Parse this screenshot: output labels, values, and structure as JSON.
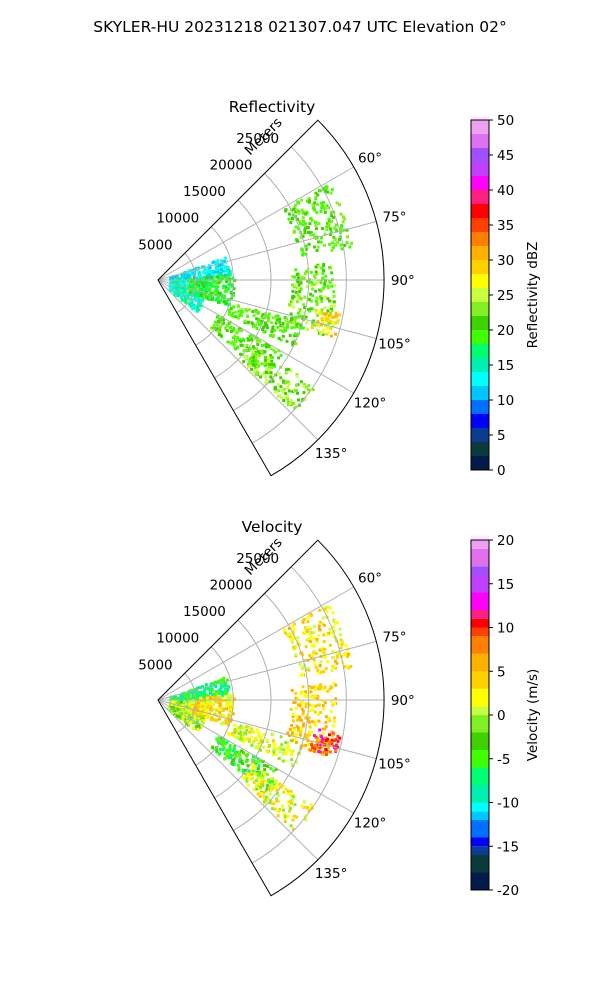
{
  "suptitle": "SKYLER-HU  20231218  021307.047 UTC Elevation 02°",
  "chart_data": [
    {
      "type": "heatmap",
      "title": "Reflectivity",
      "range_label": "Meters",
      "range_ticks": [
        5000,
        10000,
        15000,
        20000,
        25000
      ],
      "range_max": 30000,
      "azimuth_ticks": [
        "60°",
        "75°",
        "90°",
        "105°",
        "120°",
        "135°"
      ],
      "azimuth_range_deg": [
        45,
        150
      ],
      "colorbar": {
        "label": "Reflectivity dBZ",
        "min": 0,
        "max": 50,
        "ticks": [
          0,
          5,
          10,
          15,
          20,
          25,
          30,
          35,
          40,
          45,
          50
        ],
        "stops": [
          [
            0,
            "#001a4a"
          ],
          [
            2,
            "#0a3a3a"
          ],
          [
            4,
            "#0c3b92"
          ],
          [
            6,
            "#0000ff"
          ],
          [
            8,
            "#0070ff"
          ],
          [
            10,
            "#00c8ff"
          ],
          [
            12,
            "#00ffff"
          ],
          [
            14,
            "#00f0b0"
          ],
          [
            16,
            "#00ff70"
          ],
          [
            18,
            "#40ff00"
          ],
          [
            20,
            "#3fd000"
          ],
          [
            22,
            "#80f020"
          ],
          [
            24,
            "#c8ff40"
          ],
          [
            26,
            "#ffff00"
          ],
          [
            28,
            "#ffd000"
          ],
          [
            30,
            "#ffb000"
          ],
          [
            32,
            "#ff8000"
          ],
          [
            34,
            "#ff4000"
          ],
          [
            36,
            "#ff0000"
          ],
          [
            38,
            "#ff2080"
          ],
          [
            40,
            "#ff00ff"
          ],
          [
            42,
            "#c040ff"
          ],
          [
            44,
            "#a050ff"
          ],
          [
            46,
            "#e070f0"
          ],
          [
            48,
            "#f0a0f0"
          ],
          [
            50,
            "#ffe8ff"
          ]
        ]
      },
      "echoes": [
        {
          "r": [
            1500,
            9500
          ],
          "az": [
            70,
            88
          ],
          "value": 13
        },
        {
          "r": [
            1500,
            6500
          ],
          "az": [
            88,
            130
          ],
          "value": 15
        },
        {
          "r": [
            4000,
            10000
          ],
          "az": [
            85,
            110
          ],
          "value": 19
        },
        {
          "r": [
            9000,
            19000
          ],
          "az": [
            120,
            132
          ],
          "value": 21
        },
        {
          "r": [
            15000,
            25000
          ],
          "az": [
            124,
            134
          ],
          "value": 23
        },
        {
          "r": [
            10000,
            20000
          ],
          "az": [
            106,
            116
          ],
          "value": 21
        },
        {
          "r": [
            17500,
            23500
          ],
          "az": [
            84,
            108
          ],
          "value": 22
        },
        {
          "r": [
            21000,
            24500
          ],
          "az": [
            100,
            108
          ],
          "value": 28
        },
        {
          "r": [
            19000,
            26000
          ],
          "az": [
            60,
            80
          ],
          "value": 21
        }
      ]
    },
    {
      "type": "heatmap",
      "title": "Velocity",
      "range_label": "Meters",
      "range_ticks": [
        5000,
        10000,
        15000,
        20000,
        25000
      ],
      "range_max": 30000,
      "azimuth_ticks": [
        "60°",
        "75°",
        "90°",
        "105°",
        "120°",
        "135°"
      ],
      "azimuth_range_deg": [
        45,
        150
      ],
      "colorbar": {
        "label": "Velocity (m/s)",
        "min": -20,
        "max": 20,
        "ticks": [
          -20,
          -15,
          -10,
          -5,
          0,
          5,
          10,
          15,
          20
        ],
        "stops": [
          [
            -20,
            "#001a4a"
          ],
          [
            -18,
            "#0a3a3a"
          ],
          [
            -16,
            "#0c3b92"
          ],
          [
            -15,
            "#0000ff"
          ],
          [
            -14,
            "#0070ff"
          ],
          [
            -12,
            "#00c8ff"
          ],
          [
            -11,
            "#00ffff"
          ],
          [
            -10,
            "#00f0b0"
          ],
          [
            -8,
            "#00ff70"
          ],
          [
            -6,
            "#40ff00"
          ],
          [
            -4,
            "#3fd000"
          ],
          [
            -2,
            "#80f020"
          ],
          [
            0,
            "#c8ff40"
          ],
          [
            1,
            "#ffff00"
          ],
          [
            3,
            "#ffd000"
          ],
          [
            5,
            "#ffb000"
          ],
          [
            7,
            "#ff8000"
          ],
          [
            9,
            "#ff4000"
          ],
          [
            10,
            "#ff0000"
          ],
          [
            11,
            "#ff2080"
          ],
          [
            12,
            "#ff00ff"
          ],
          [
            14,
            "#c040ff"
          ],
          [
            16,
            "#a050ff"
          ],
          [
            17,
            "#e070f0"
          ],
          [
            19,
            "#f0a0f0"
          ],
          [
            20,
            "#ffe8ff"
          ]
        ]
      },
      "echoes": [
        {
          "r": [
            1500,
            9500
          ],
          "az": [
            70,
            88
          ],
          "value": -7
        },
        {
          "r": [
            1500,
            6500
          ],
          "az": [
            88,
            130
          ],
          "value": 0
        },
        {
          "r": [
            4000,
            10000
          ],
          "az": [
            85,
            110
          ],
          "value": 3
        },
        {
          "r": [
            9000,
            19000
          ],
          "az": [
            120,
            132
          ],
          "value": -4
        },
        {
          "r": [
            15000,
            25000
          ],
          "az": [
            124,
            134
          ],
          "value": 2
        },
        {
          "r": [
            10000,
            20000
          ],
          "az": [
            106,
            116
          ],
          "value": 1
        },
        {
          "r": [
            17500,
            23500
          ],
          "az": [
            84,
            108
          ],
          "value": 4
        },
        {
          "r": [
            21000,
            24500
          ],
          "az": [
            100,
            108
          ],
          "value": 10
        },
        {
          "r": [
            19000,
            26000
          ],
          "az": [
            60,
            80
          ],
          "value": 3
        }
      ]
    }
  ]
}
